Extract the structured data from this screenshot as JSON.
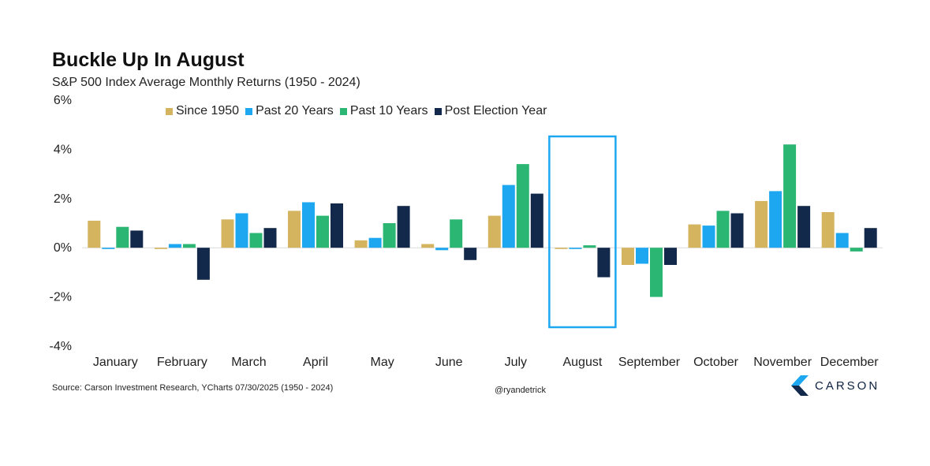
{
  "chart_data": {
    "type": "bar",
    "title": "Buckle Up In August",
    "subtitle": "S&P 500 Index Average Monthly Returns (1950 - 2024)",
    "categories": [
      "January",
      "February",
      "March",
      "April",
      "May",
      "June",
      "July",
      "August",
      "September",
      "October",
      "November",
      "December"
    ],
    "series": [
      {
        "name": "Since 1950",
        "color": "#d4b45f",
        "values": [
          1.1,
          -0.05,
          1.15,
          1.5,
          0.3,
          0.15,
          1.3,
          -0.05,
          -0.7,
          0.95,
          1.9,
          1.45
        ]
      },
      {
        "name": "Past 20 Years",
        "color": "#1ca7f0",
        "values": [
          -0.05,
          0.15,
          1.4,
          1.85,
          0.4,
          -0.1,
          2.55,
          -0.05,
          -0.65,
          0.9,
          2.3,
          0.6
        ]
      },
      {
        "name": "Past 10 Years",
        "color": "#2bb673",
        "values": [
          0.85,
          0.15,
          0.6,
          1.3,
          1.0,
          1.15,
          3.4,
          0.1,
          -2.0,
          1.5,
          4.2,
          -0.15
        ]
      },
      {
        "name": "Post Election Year",
        "color": "#13294b",
        "values": [
          0.7,
          -1.3,
          0.8,
          1.8,
          1.7,
          -0.5,
          2.2,
          -1.2,
          -0.7,
          1.4,
          1.7,
          0.8
        ]
      }
    ],
    "y_ticks": [
      "6%",
      "4%",
      "2%",
      "0%",
      "-2%",
      "-4%"
    ],
    "ylim": [
      -4,
      6
    ],
    "highlight_category": "August",
    "highlight_color": "#1ca7f0",
    "legend_position": "top"
  },
  "footer": {
    "source": "Source: Carson Investment Research, YCharts 07/30/2025 (1950 - 2024)",
    "handle": "@ryandetrick",
    "logo_text": "CARSON"
  }
}
